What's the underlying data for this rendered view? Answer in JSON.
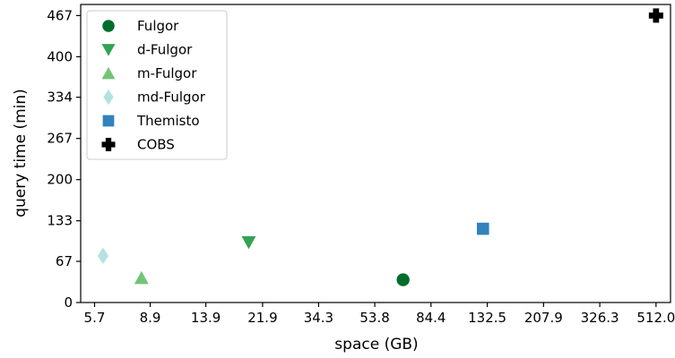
{
  "chart_data": {
    "type": "scatter",
    "title": "",
    "xlabel": "space (GB)",
    "ylabel": "query time (min)",
    "x_scale": "log",
    "x_ticks": [
      5.7,
      8.9,
      13.9,
      21.9,
      34.3,
      53.8,
      84.4,
      132.5,
      207.9,
      326.3,
      512.0
    ],
    "x_tick_labels": [
      "5.7",
      "8.9",
      "13.9",
      "21.9",
      "34.3",
      "53.8",
      "84.4",
      "132.5",
      "207.9",
      "326.3",
      "512.0"
    ],
    "y_ticks": [
      0,
      67,
      133,
      200,
      267,
      334,
      400,
      467
    ],
    "y_tick_labels": [
      "0",
      "67",
      "133",
      "200",
      "267",
      "334",
      "400",
      "467"
    ],
    "xlim": [
      5.1,
      575
    ],
    "ylim": [
      0,
      485
    ],
    "grid": false,
    "legend_position": "top-left",
    "series": [
      {
        "name": "Fulgor",
        "marker": "circle",
        "color": "#006d2c",
        "x": 67.5,
        "y": 37
      },
      {
        "name": "d-Fulgor",
        "marker": "triangle-down",
        "color": "#31a354",
        "x": 19.6,
        "y": 98
      },
      {
        "name": "m-Fulgor",
        "marker": "triangle-up",
        "color": "#74c476",
        "x": 8.3,
        "y": 40
      },
      {
        "name": "md-Fulgor",
        "marker": "diamond",
        "color": "#b2e2e2",
        "x": 6.1,
        "y": 76
      },
      {
        "name": "Themisto",
        "marker": "square",
        "color": "#3182bd",
        "x": 128.0,
        "y": 120
      },
      {
        "name": "COBS",
        "marker": "plus",
        "color": "#000000",
        "x": 512.0,
        "y": 467
      }
    ]
  }
}
